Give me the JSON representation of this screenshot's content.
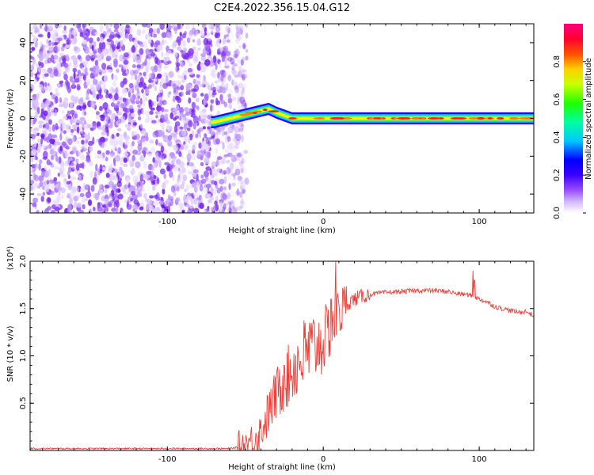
{
  "title": "C2E4.2022.356.15.04.G12",
  "chart_data": [
    {
      "type": "heatmap",
      "xlabel": "Height of straight line (km)",
      "ylabel": "Frequency (Hz)",
      "xlim": [
        -188,
        135
      ],
      "ylim": [
        -50,
        50
      ],
      "xticks": [
        -100,
        0,
        100
      ],
      "yticks": [
        -40,
        -20,
        0,
        20,
        40
      ],
      "noise_region_x": [
        -188,
        -55
      ],
      "ridge": {
        "description_points_x": [
          -70,
          -60,
          -50,
          -40,
          -35,
          -30,
          -20,
          0,
          20,
          60,
          100,
          135
        ],
        "description_points_y": [
          -2,
          0,
          2,
          4,
          5,
          3,
          0,
          0,
          0,
          0,
          0,
          0
        ]
      },
      "colorbar": {
        "label": "Normalized spectral amplitude",
        "range": [
          0,
          1
        ],
        "ticks": [
          "0.0",
          "0.2",
          "0.4",
          "0.6",
          "0.8"
        ],
        "colormap": [
          "#ffffff",
          "#b07cff",
          "#6a00ff",
          "#0000ff",
          "#00c8ff",
          "#00ff80",
          "#7fff00",
          "#ffff00",
          "#ff8000",
          "#ff0000",
          "#ff007f"
        ]
      }
    },
    {
      "type": "line",
      "xlabel": "Height of straight line (km)",
      "ylabel": "SNR (10 * v/v)",
      "multiplier": "(x10⁴)",
      "xlim": [
        -188,
        135
      ],
      "ylim": [
        0,
        2.0
      ],
      "xticks": [
        -100,
        0,
        100
      ],
      "yticks": [
        "0.5",
        "1.0",
        "1.5",
        "2.0"
      ],
      "series": [
        {
          "color": "#e8403a",
          "x": [
            -188,
            -150,
            -100,
            -60,
            -50,
            -40,
            -35,
            -30,
            -25,
            -20,
            -15,
            -10,
            -5,
            0,
            5,
            10,
            15,
            20,
            25,
            30,
            40,
            50,
            60,
            70,
            80,
            85,
            90,
            95,
            100,
            105,
            110,
            115,
            120,
            125,
            130,
            135
          ],
          "y": [
            0.02,
            0.02,
            0.02,
            0.02,
            0.05,
            0.2,
            0.4,
            0.6,
            0.7,
            0.85,
            0.95,
            1.05,
            1.1,
            1.15,
            1.3,
            1.45,
            1.55,
            1.6,
            1.63,
            1.65,
            1.67,
            1.68,
            1.69,
            1.69,
            1.68,
            1.66,
            1.65,
            1.64,
            1.6,
            1.57,
            1.52,
            1.5,
            1.48,
            1.46,
            1.47,
            1.42
          ]
        }
      ],
      "spikes": [
        {
          "x": 8,
          "y": 2.0
        },
        {
          "x": 10,
          "y": 1.55
        },
        {
          "x": 96,
          "y": 1.9
        },
        {
          "x": 97,
          "y": 1.8
        },
        {
          "x": 5,
          "y": 1.6
        },
        {
          "x": -25,
          "y": 0.9
        },
        {
          "x": -30,
          "y": 0.8
        }
      ]
    }
  ]
}
